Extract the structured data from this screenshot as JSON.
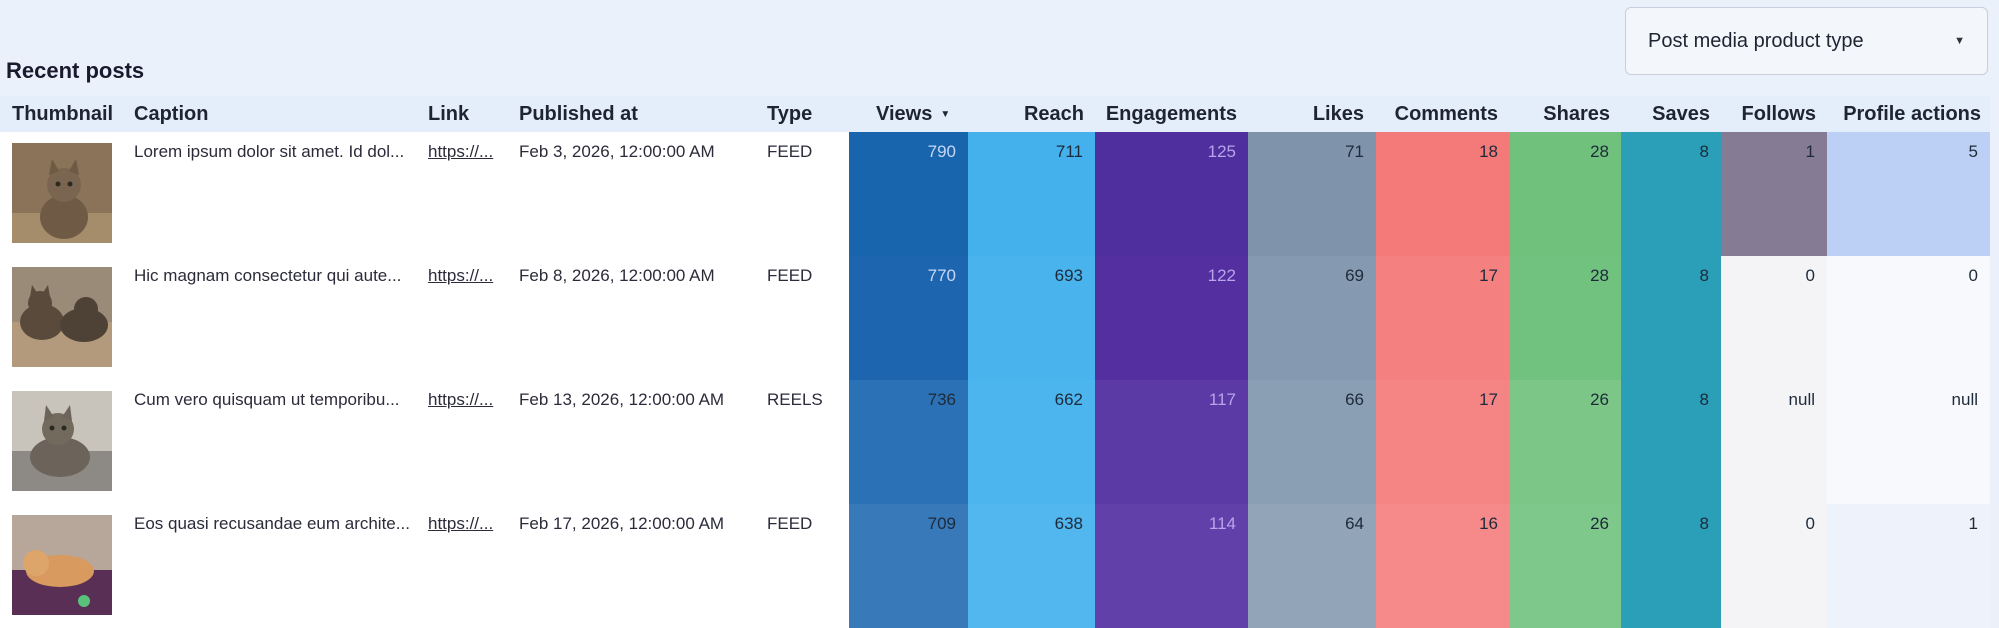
{
  "filter": {
    "label": "Post media product type"
  },
  "title": "Recent posts",
  "columns": {
    "thumbnail": "Thumbnail",
    "caption": "Caption",
    "link": "Link",
    "published": "Published at",
    "type": "Type",
    "views": "Views",
    "reach": "Reach",
    "engagements": "Engagements",
    "likes": "Likes",
    "comments": "Comments",
    "shares": "Shares",
    "saves": "Saves",
    "follows": "Follows",
    "profile_actions": "Profile actions"
  },
  "rows": [
    {
      "caption": "Lorem ipsum dolor sit amet. Id dol...",
      "link": "https://...",
      "published": "Feb 3, 2026, 12:00:00 AM",
      "type": "FEED",
      "views": "790",
      "reach": "711",
      "engagements": "125",
      "likes": "71",
      "comments": "18",
      "shares": "28",
      "saves": "8",
      "follows": "1",
      "profile_actions": "5"
    },
    {
      "caption": "Hic magnam consectetur qui aute...",
      "link": "https://...",
      "published": "Feb 8, 2026, 12:00:00 AM",
      "type": "FEED",
      "views": "770",
      "reach": "693",
      "engagements": "122",
      "likes": "69",
      "comments": "17",
      "shares": "28",
      "saves": "8",
      "follows": "0",
      "profile_actions": "0"
    },
    {
      "caption": "Cum vero quisquam ut temporibu...",
      "link": "https://...",
      "published": "Feb 13, 2026, 12:00:00 AM",
      "type": "REELS",
      "views": "736",
      "reach": "662",
      "engagements": "117",
      "likes": "66",
      "comments": "17",
      "shares": "26",
      "saves": "8",
      "follows": "null",
      "profile_actions": "null"
    },
    {
      "caption": "Eos quasi recusandae eum archite...",
      "link": "https://...",
      "published": "Feb 17, 2026, 12:00:00 AM",
      "type": "FEED",
      "views": "709",
      "reach": "638",
      "engagements": "114",
      "likes": "64",
      "comments": "16",
      "shares": "26",
      "saves": "8",
      "follows": "0",
      "profile_actions": "1"
    }
  ],
  "colors": {
    "views": [
      "#1965ad",
      "#1d66af",
      "#2a72b5",
      "#3779b9"
    ],
    "reach": [
      "#45b1ec",
      "#48b3ed",
      "#4db5ed",
      "#52b7ee"
    ],
    "engagements": [
      "#4f2e9d",
      "#532fa0",
      "#5b3aa5",
      "#6240a9"
    ],
    "likes": [
      "#7f93ab",
      "#8599b0",
      "#8b9fb4",
      "#91a4b8"
    ],
    "comments": [
      "#f47a7a",
      "#f48080",
      "#f58484",
      "#f68a8a"
    ],
    "shares": [
      "#6fc17c",
      "#72c27f",
      "#7cc788",
      "#7fc88b"
    ],
    "saves": [
      "#2a9fb7",
      "#2a9fb7",
      "#2a9fb7",
      "#2a9fb7"
    ],
    "follows": [
      "#857b95",
      "#f4f4f7",
      "#f4f4f7",
      "#f4f4f7"
    ],
    "profile_actions": [
      "#bcd0f5",
      "#f8f9fc",
      "#f8f9fc",
      "#eef2fb"
    ]
  }
}
